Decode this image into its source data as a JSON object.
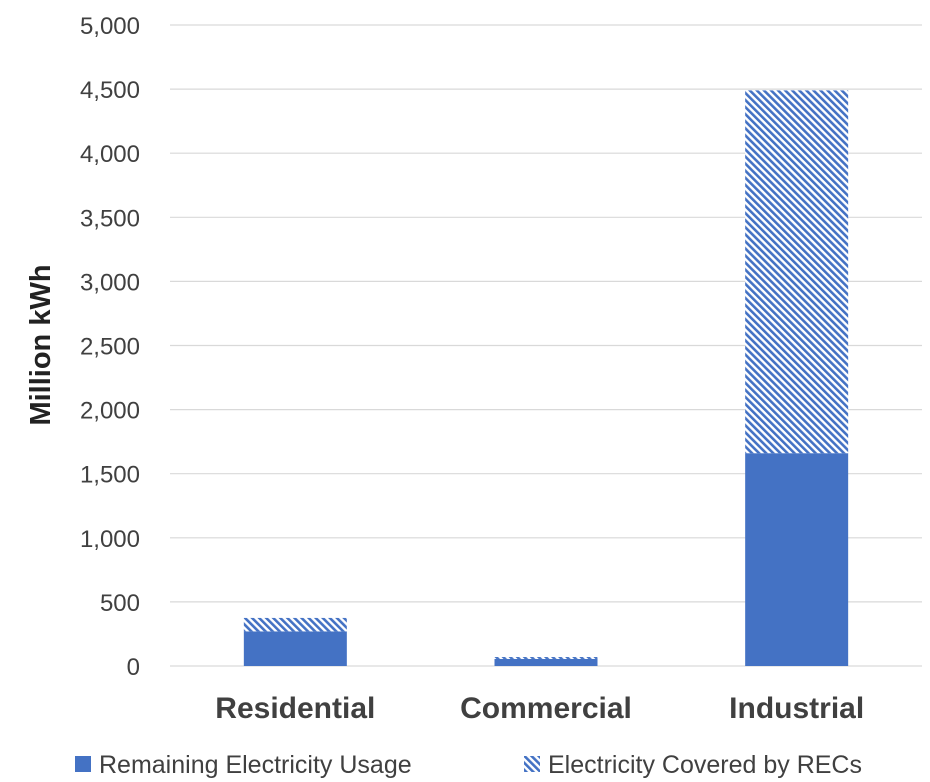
{
  "chart_data": {
    "type": "bar",
    "stacked": true,
    "categories": [
      "Residential",
      "Commercial",
      "Industrial"
    ],
    "series": [
      {
        "name": "Remaining Electricity Usage",
        "values": [
          270,
          55,
          1660
        ],
        "color": "#4472C4",
        "pattern": "solid"
      },
      {
        "name": "Electricity Covered by RECs",
        "values": [
          105,
          15,
          2830
        ],
        "color": "#4472C4",
        "pattern": "diagonal-stripes"
      }
    ],
    "title": "",
    "xlabel": "",
    "ylabel": "Million kWh",
    "ylim": [
      0,
      5000
    ],
    "yticks": [
      0,
      500,
      1000,
      1500,
      2000,
      2500,
      3000,
      3500,
      4000,
      4500,
      5000
    ],
    "grid": true,
    "legend_position": "bottom"
  }
}
